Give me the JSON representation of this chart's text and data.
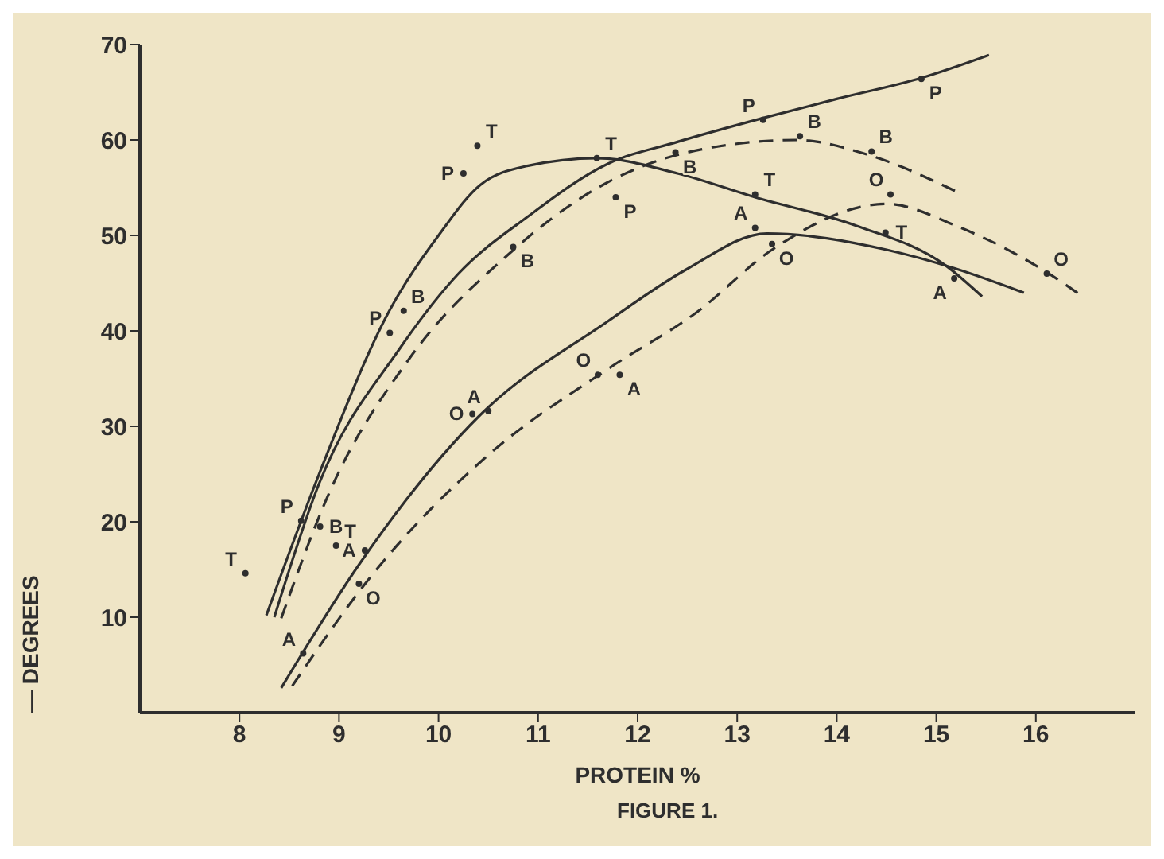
{
  "chart_data": {
    "type": "line",
    "xlabel": "PROTEIN %",
    "ylabel": "— DEGREES",
    "annotations": [
      "FIGURE 1."
    ],
    "xlim": [
      7,
      17
    ],
    "xticks": [
      8,
      9,
      10,
      11,
      12,
      13,
      14,
      15,
      16
    ],
    "ylim": [
      0,
      70
    ],
    "yticks": [
      10,
      20,
      30,
      40,
      50,
      60,
      70
    ],
    "series": [
      {
        "type": "line",
        "color": "#2e2e2e",
        "line_style": "solid",
        "marker": "none",
        "x": [
          8.27,
          8.8,
          9.5,
          10.0,
          10.42,
          10.9,
          11.59,
          12.4,
          13.18,
          14.2,
          15.1,
          15.46
        ],
        "values": [
          10.2,
          25,
          42,
          50,
          55.3,
          57.3,
          58.1,
          56.5,
          54,
          51,
          46.8,
          43.6
        ]
      },
      {
        "type": "line",
        "color": "#2e2e2e",
        "line_style": "solid",
        "marker": "none",
        "x": [
          8.35,
          8.8,
          9.6,
          10.2,
          10.9,
          11.7,
          12.4,
          13.26,
          14.0,
          14.85,
          15.53
        ],
        "values": [
          10,
          24,
          38,
          46,
          52,
          57.5,
          59.8,
          62.3,
          64.3,
          66.5,
          68.9
        ]
      },
      {
        "type": "line",
        "color": "#2e2e2e",
        "line_style": "dashed",
        "marker": "none",
        "x": [
          8.42,
          8.9,
          9.7,
          10.7,
          11.6,
          12.5,
          13.6,
          14.3,
          15.22
        ],
        "values": [
          9.9,
          23,
          37,
          48,
          55,
          58.7,
          60,
          58.5,
          54.5
        ]
      },
      {
        "type": "line",
        "color": "#2e2e2e",
        "line_style": "solid",
        "marker": "none",
        "x": [
          8.42,
          9.2,
          10.4,
          11.7,
          12.5,
          13.3,
          14.5,
          15.2,
          15.88
        ],
        "values": [
          2.6,
          15.5,
          31,
          41,
          46.5,
          50.2,
          48.5,
          46.5,
          44
        ]
      },
      {
        "type": "line",
        "color": "#2e2e2e",
        "line_style": "dashed",
        "marker": "none",
        "x": [
          8.53,
          9.3,
          10.5,
          11.7,
          12.6,
          13.35,
          14.5,
          15.2,
          16.1,
          16.47
        ],
        "values": [
          2.8,
          14,
          27,
          36,
          42,
          48.5,
          53.3,
          51,
          46.2,
          43.6
        ]
      },
      {
        "type": "scatter",
        "name": "P",
        "color": "#2e2e2e",
        "x": [
          8.62,
          9.51,
          10.25,
          11.78,
          13.26,
          14.85
        ],
        "values": [
          20.1,
          39.8,
          56.5,
          54,
          62.1,
          66.4
        ]
      },
      {
        "type": "scatter",
        "name": "T",
        "color": "#2e2e2e",
        "x": [
          8.06,
          8.97,
          10.39,
          11.59,
          13.18,
          14.49
        ],
        "values": [
          14.6,
          17.5,
          59.4,
          58.1,
          54.3,
          50.3
        ]
      },
      {
        "type": "scatter",
        "name": "B",
        "color": "#2e2e2e",
        "x": [
          8.81,
          9.65,
          10.75,
          12.38,
          13.63,
          14.35
        ],
        "values": [
          19.5,
          42.1,
          48.8,
          58.7,
          60.4,
          58.8
        ]
      },
      {
        "type": "scatter",
        "name": "A",
        "color": "#2e2e2e",
        "x": [
          8.64,
          9.26,
          10.5,
          11.82,
          13.18,
          15.18
        ],
        "values": [
          6.2,
          17,
          31.6,
          35.4,
          50.8,
          45.5
        ]
      },
      {
        "type": "scatter",
        "name": "O",
        "color": "#2e2e2e",
        "x": [
          9.2,
          10.34,
          11.6,
          13.35,
          14.54,
          16.11
        ],
        "values": [
          13.5,
          31.3,
          35.4,
          49.1,
          54.3,
          46
        ]
      }
    ]
  }
}
